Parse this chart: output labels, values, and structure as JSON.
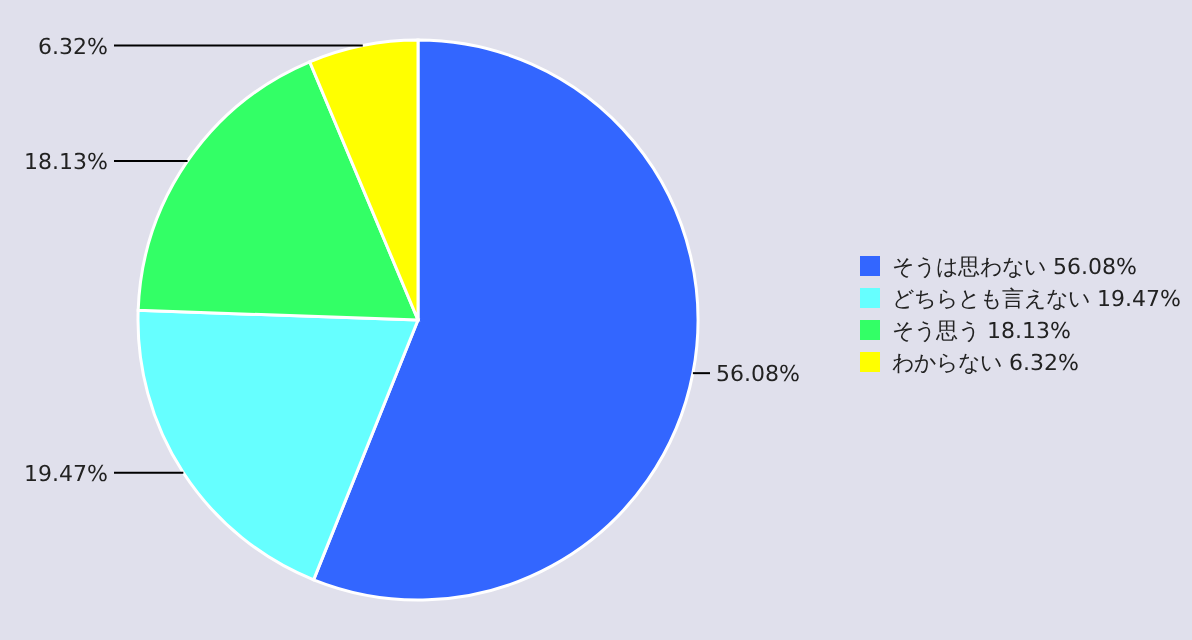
{
  "chart_data": {
    "type": "pie",
    "categories": [
      "そうは思わない 56.08%",
      "どちらとも言えない 19.47%",
      "そう思う 18.13%",
      "わからない 6.32%"
    ],
    "values": [
      56.08,
      19.47,
      18.13,
      6.32
    ],
    "value_labels": [
      "56.08%",
      "19.47%",
      "18.13%",
      "6.32%"
    ],
    "colors": [
      "#3366ff",
      "#66ffff",
      "#33ff66",
      "#ffff00"
    ],
    "legend": "right"
  }
}
